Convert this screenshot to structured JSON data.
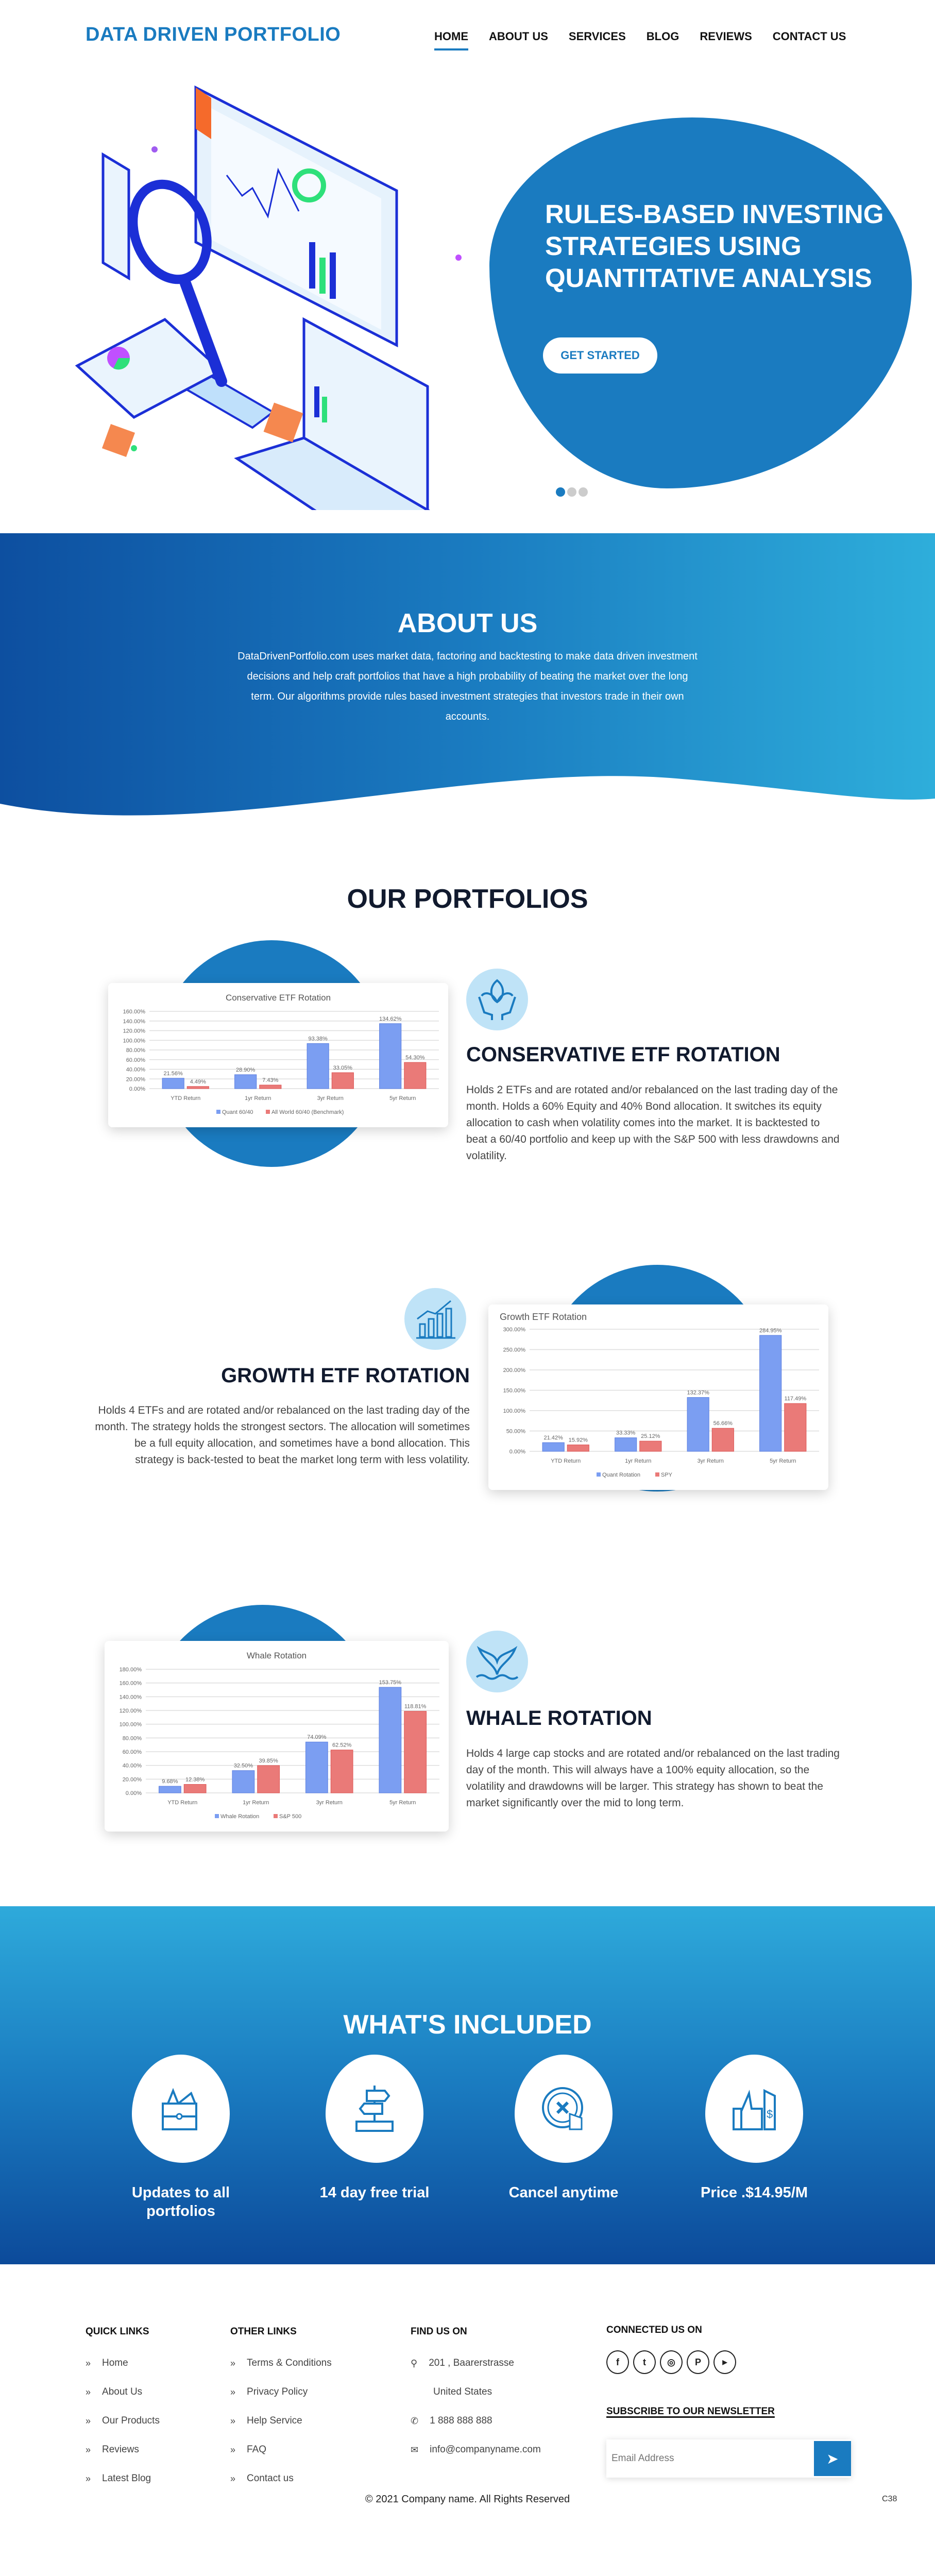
{
  "header": {
    "logo": "DATA DRIVEN PORTFOLIO",
    "nav": [
      "HOME",
      "ABOUT US",
      "SERVICES",
      "BLOG",
      "REVIEWS",
      "CONTACT US"
    ]
  },
  "hero": {
    "title": "RULES-BASED INVESTING STRATEGIES USING QUANTITATIVE ANALYSIS",
    "cta": "GET STARTED",
    "slides": 3,
    "active_slide": 1
  },
  "about": {
    "title": "ABOUT US",
    "text": "DataDrivenPortfolio.com uses market data, factoring and backtesting to make data driven investment decisions and help craft portfolios that have a high probability of beating the market over the long term. Our algorithms provide rules based investment strategies that investors trade in their own accounts."
  },
  "portfolios": {
    "title": "OUR PORTFOLIOS",
    "items": [
      {
        "title": "CONSERVATIVE ETF ROTATION",
        "icon": "hands-plant-icon",
        "text": "Holds 2 ETFs and are rotated and/or rebalanced on the last trading day of the month. Holds a 60% Equity and 40% Bond allocation. It switches its equity allocation to cash when volatility comes into the market. It is backtested to beat a 60/40 portfolio and keep up with the S&P 500 with less drawdowns and volatility."
      },
      {
        "title": "GROWTH ETF ROTATION",
        "icon": "growth-chart-icon",
        "text": "Holds 4 ETFs and are rotated and/or rebalanced on the last trading day of the month. The strategy holds the strongest sectors. The allocation will sometimes be a full equity allocation, and sometimes have a bond allocation. This strategy is back-tested to beat the market long term with less volatility."
      },
      {
        "title": "WHALE ROTATION",
        "icon": "whale-tail-icon",
        "text": "Holds 4 large cap stocks and are rotated and/or rebalanced on the last trading day of the month. This will always have a 100% equity allocation, so the volatility and drawdowns will be larger. This strategy has shown to beat the market significantly over the mid to long term."
      }
    ]
  },
  "chart_data": [
    {
      "type": "bar",
      "title": "Conservative ETF Rotation",
      "title_align": "center",
      "categories": [
        "YTD Return",
        "1yr Return",
        "3yr Return",
        "5yr Return"
      ],
      "series": [
        {
          "name": "Quant 60/40",
          "values": [
            21.56,
            28.9,
            93.38,
            134.62
          ],
          "labels": [
            "21.56%",
            "28.90%",
            "93.38%",
            "134.62%"
          ]
        },
        {
          "name": "All World 60/40 (Benchmark)",
          "values": [
            4.49,
            7.43,
            33.05,
            54.3
          ],
          "labels": [
            "4.49%",
            "7.43%",
            "33.05%",
            "54.30%"
          ]
        }
      ],
      "ylim": [
        0,
        160
      ],
      "yticks": [
        "0.00%",
        "20.00%",
        "40.00%",
        "60.00%",
        "80.00%",
        "100.00%",
        "120.00%",
        "140.00%",
        "160.00%"
      ],
      "grid": true,
      "legend": "bottom",
      "colors": [
        "#7b9ef2",
        "#ea7a78"
      ]
    },
    {
      "type": "bar",
      "title": "Growth ETF Rotation",
      "title_align": "left",
      "categories": [
        "YTD Return",
        "1yr Return",
        "3yr Return",
        "5yr Return"
      ],
      "series": [
        {
          "name": "Quant Rotation",
          "values": [
            21.42,
            33.33,
            132.37,
            284.95
          ],
          "labels": [
            "21.42%",
            "33.33%",
            "132.37%",
            "284.95%"
          ]
        },
        {
          "name": "SPY",
          "values": [
            15.92,
            25.12,
            56.66,
            117.49
          ],
          "labels": [
            "15.92%",
            "25.12%",
            "56.66%",
            "117.49%"
          ]
        }
      ],
      "ylim": [
        0,
        300
      ],
      "yticks": [
        "0.00%",
        "50.00%",
        "100.00%",
        "150.00%",
        "200.00%",
        "250.00%",
        "300.00%"
      ],
      "grid": true,
      "legend": "bottom",
      "colors": [
        "#7b9ef2",
        "#ea7a78"
      ]
    },
    {
      "type": "bar",
      "title": "Whale Rotation",
      "title_align": "center",
      "categories": [
        "YTD Return",
        "1yr Return",
        "3yr Return",
        "5yr Return"
      ],
      "series": [
        {
          "name": "Whale Rotation",
          "values": [
            9.68,
            32.5,
            74.09,
            153.75
          ],
          "labels": [
            "9.68%",
            "32.50%",
            "74.09%",
            "153.75%"
          ]
        },
        {
          "name": "S&P 500",
          "values": [
            12.38,
            39.85,
            62.52,
            118.81
          ],
          "labels": [
            "12.38%",
            "39.85%",
            "62.52%",
            "118.81%"
          ]
        }
      ],
      "ylim": [
        0,
        180
      ],
      "yticks": [
        "0.00%",
        "20.00%",
        "40.00%",
        "60.00%",
        "80.00%",
        "100.00%",
        "120.00%",
        "140.00%",
        "160.00%",
        "180.00%"
      ],
      "grid": true,
      "legend": "bottom",
      "colors": [
        "#7b9ef2",
        "#ea7a78"
      ]
    }
  ],
  "included": {
    "title": "WHAT'S INCLUDED",
    "items": [
      {
        "label": "Updates to all portfolios",
        "icon": "wallet-icon"
      },
      {
        "label": "14 day free trial",
        "icon": "signpost-icon"
      },
      {
        "label": "Cancel anytime",
        "icon": "cancel-button-icon"
      },
      {
        "label": "Price .$14.95/M",
        "icon": "thumbs-up-price-tag-icon"
      }
    ]
  },
  "footer": {
    "quick_links": {
      "title": "QUICK LINKS",
      "items": [
        "Home",
        "About Us",
        "Our Products",
        "Reviews",
        "Latest Blog"
      ]
    },
    "other_links": {
      "title": "OTHER LINKS",
      "items": [
        "Terms & Conditions",
        "Privacy Policy",
        "Help Service",
        "FAQ",
        "Contact us"
      ]
    },
    "find_us": {
      "title": "FIND US ON",
      "address1": "201 , Baarerstrasse",
      "address2": "United States",
      "phone": "1 888 888 888",
      "email": "info@companyname.com"
    },
    "connect": {
      "title": "CONNECTED US ON",
      "social": [
        "facebook",
        "twitter",
        "instagram",
        "pinterest",
        "youtube"
      ]
    },
    "newsletter": {
      "title": "SUBSCRIBE TO OUR NEWSLETTER",
      "placeholder": "Email Address"
    },
    "copyright": "© 2021 Company name. All Rights Reserved",
    "code": "C38"
  },
  "colors": {
    "brand": "#1a7bc0",
    "dark": "#111a2e"
  }
}
